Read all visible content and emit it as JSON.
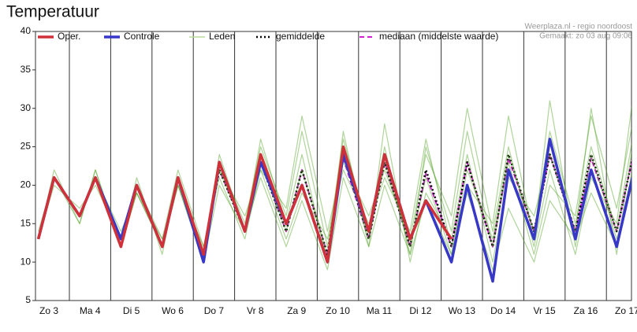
{
  "chart_data": {
    "type": "line",
    "title": "Temperatuur",
    "source": "Weerplaza.nl - regio noordoost",
    "created": "Gemaakt: zo 03 aug 09:06",
    "categories": [
      "Zo 3",
      "Ma 4",
      "Di 5",
      "Wo 6",
      "Do 7",
      "Vr 8",
      "Za 9",
      "Zo 10",
      "Ma 11",
      "Di 12",
      "Wo 13",
      "Do 14",
      "Vr 15",
      "Za 16",
      "Zo 17"
    ],
    "ylim": [
      5,
      40
    ],
    "yticks": [
      5,
      10,
      15,
      20,
      25,
      30,
      35,
      40
    ],
    "series": [
      {
        "name": "Oper.",
        "color": "#d03038",
        "values": [
          [
            13,
            21
          ],
          [
            16,
            21
          ],
          [
            12,
            20
          ],
          [
            12,
            21
          ],
          [
            11,
            23
          ],
          [
            14,
            24
          ],
          [
            15,
            20
          ],
          [
            10,
            25
          ],
          [
            14,
            24
          ],
          [
            13,
            18
          ],
          [
            13,
            null
          ],
          [
            null,
            null
          ],
          [
            null,
            null
          ],
          [
            null,
            null
          ],
          [
            null,
            null
          ]
        ]
      },
      {
        "name": "Controle",
        "color": "#3838c8",
        "values": [
          [
            13,
            21
          ],
          [
            16,
            21
          ],
          [
            13,
            20
          ],
          [
            12,
            21
          ],
          [
            10,
            23
          ],
          [
            14,
            23
          ],
          [
            15,
            20
          ],
          [
            10,
            24
          ],
          [
            14,
            24
          ],
          [
            13,
            18
          ],
          [
            10,
            20
          ],
          [
            7.5,
            22
          ],
          [
            13,
            26
          ],
          [
            13,
            22
          ],
          [
            12,
            21
          ]
        ]
      },
      {
        "name": "Leden",
        "color": "#4ea020",
        "members": [
          [
            [
              13,
              21
            ],
            [
              16,
              21
            ],
            [
              13,
              20
            ],
            [
              12,
              21
            ],
            [
              11,
              22
            ],
            [
              14,
              23
            ],
            [
              14,
              22
            ],
            [
              11,
              24
            ],
            [
              13,
              23
            ],
            [
              12,
              21
            ],
            [
              11,
              22
            ],
            [
              13,
              24
            ],
            [
              14,
              27
            ],
            [
              15,
              25
            ],
            [
              14,
              26
            ]
          ],
          [
            [
              13,
              21
            ],
            [
              15,
              22
            ],
            [
              12,
              19
            ],
            [
              13,
              20
            ],
            [
              10,
              23
            ],
            [
              15,
              25
            ],
            [
              16,
              27
            ],
            [
              12,
              26
            ],
            [
              14,
              25
            ],
            [
              11,
              25
            ],
            [
              14,
              27
            ],
            [
              12,
              23
            ],
            [
              11,
              20
            ],
            [
              16,
              29
            ],
            [
              17,
              28
            ]
          ],
          [
            [
              14,
              21
            ],
            [
              16,
              21
            ],
            [
              14,
              19
            ],
            [
              12,
              20
            ],
            [
              12,
              21
            ],
            [
              13,
              22
            ],
            [
              13,
              19
            ],
            [
              13,
              22
            ],
            [
              15,
              21
            ],
            [
              14,
              26
            ],
            [
              12,
              20
            ],
            [
              15,
              29
            ],
            [
              13,
              31
            ],
            [
              12,
              24
            ],
            [
              13,
              20
            ]
          ],
          [
            [
              13,
              22
            ],
            [
              15,
              22
            ],
            [
              12,
              21
            ],
            [
              11,
              21
            ],
            [
              11,
              24
            ],
            [
              14,
              26
            ],
            [
              15,
              24
            ],
            [
              10,
              27
            ],
            [
              12,
              28
            ],
            [
              10,
              19
            ],
            [
              13,
              24
            ],
            [
              10,
              21
            ],
            [
              16,
              24
            ],
            [
              14,
              30
            ],
            [
              11,
              25
            ]
          ],
          [
            [
              13,
              20
            ],
            [
              17,
              20
            ],
            [
              13,
              20
            ],
            [
              13,
              22
            ],
            [
              12,
              22
            ],
            [
              16,
              22
            ],
            [
              17,
              29
            ],
            [
              14,
              23
            ],
            [
              16,
              22
            ],
            [
              13,
              24
            ],
            [
              16,
              30
            ],
            [
              14,
              25
            ],
            [
              12,
              22
            ],
            [
              11,
              21
            ],
            [
              15,
              31
            ]
          ],
          [
            [
              13,
              21
            ],
            [
              16,
              21
            ],
            [
              12,
              19
            ],
            [
              12,
              20
            ],
            [
              10,
              20
            ],
            [
              14,
              21
            ],
            [
              12,
              18
            ],
            [
              9,
              21
            ],
            [
              12,
              20
            ],
            [
              11,
              18
            ],
            [
              11,
              19
            ],
            [
              9,
              17
            ],
            [
              10,
              18
            ],
            [
              13,
              19
            ],
            [
              12,
              22
            ]
          ]
        ]
      },
      {
        "name": "gemiddelde",
        "color": "#000000",
        "values": [
          [
            13,
            21
          ],
          [
            16,
            21
          ],
          [
            13,
            20
          ],
          [
            12,
            21
          ],
          [
            11,
            22
          ],
          [
            14,
            23
          ],
          [
            14,
            22
          ],
          [
            11,
            24
          ],
          [
            13,
            23
          ],
          [
            12,
            22
          ],
          [
            12,
            23
          ],
          [
            12,
            24
          ],
          [
            14,
            24
          ],
          [
            14,
            24
          ],
          [
            14,
            23.5
          ]
        ]
      },
      {
        "name": "mediaan (middelste waarde)",
        "color": "#d020d0",
        "values": [
          [
            13,
            21
          ],
          [
            16,
            21
          ],
          [
            13,
            20
          ],
          [
            12,
            21
          ],
          [
            11,
            22
          ],
          [
            14,
            23
          ],
          [
            14,
            22
          ],
          [
            11,
            23.5
          ],
          [
            13,
            23
          ],
          [
            12,
            21.5
          ],
          [
            12,
            23
          ],
          [
            12,
            23.5
          ],
          [
            14,
            24
          ],
          [
            14,
            23.5
          ],
          [
            14,
            23.5
          ]
        ]
      }
    ]
  }
}
